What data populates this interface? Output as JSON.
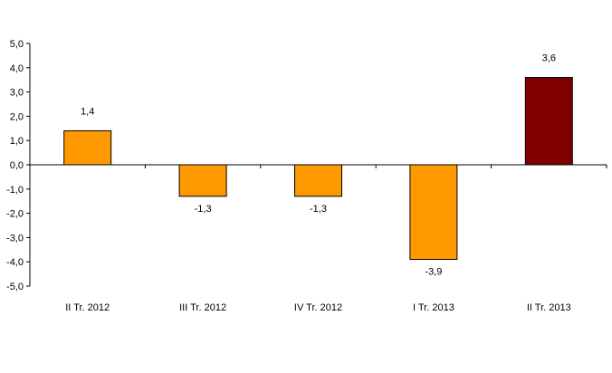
{
  "chart_data": {
    "type": "bar",
    "title": "",
    "xlabel": "",
    "ylabel": "",
    "categories": [
      "II Tr. 2012",
      "III Tr. 2012",
      "IV Tr. 2012",
      "I Tr. 2013",
      "II Tr. 2013"
    ],
    "values": [
      1.4,
      -1.3,
      -1.3,
      -3.9,
      3.6
    ],
    "value_labels": [
      "1,4",
      "-1,3",
      "-1,3",
      "-3,9",
      "3,6"
    ],
    "ylim": [
      -5.0,
      5.0
    ],
    "y_ticks": [
      5.0,
      4.0,
      3.0,
      2.0,
      1.0,
      0.0,
      -1.0,
      -2.0,
      -3.0,
      -4.0,
      -5.0
    ],
    "y_tick_labels": [
      "5,0",
      "4,0",
      "3,0",
      "2,0",
      "1,0",
      "0,0",
      "-1,0",
      "-2,0",
      "-3,0",
      "-4,0",
      "-5,0"
    ],
    "grid": false,
    "legend": "none",
    "colors": {
      "default_bar": "#FF9900",
      "highlight_bar": "#800000",
      "bar_outline": "#000000",
      "axis": "#000000"
    },
    "highlight_index": 4
  }
}
